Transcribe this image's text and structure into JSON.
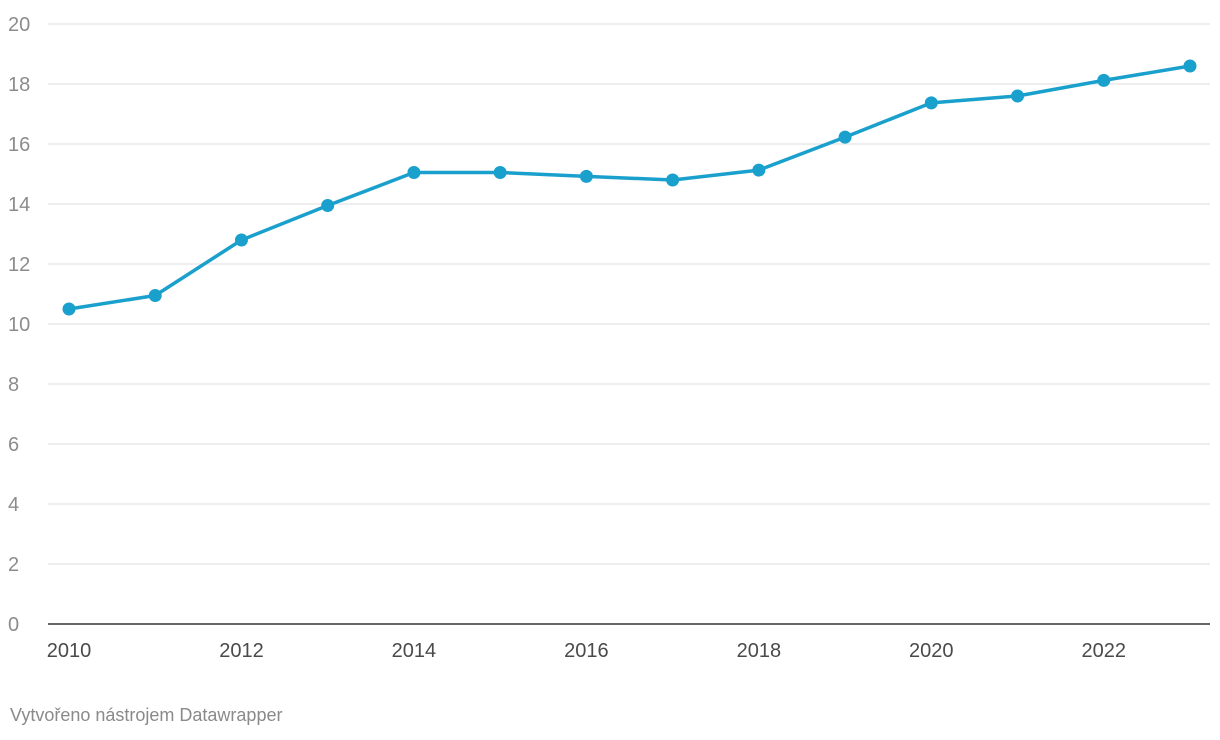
{
  "chart_data": {
    "type": "line",
    "x": [
      2010,
      2011,
      2012,
      2013,
      2014,
      2015,
      2016,
      2017,
      2018,
      2019,
      2020,
      2021,
      2022,
      2023
    ],
    "series": [
      {
        "values": [
          10.5,
          10.95,
          12.8,
          13.95,
          15.05,
          15.05,
          14.92,
          14.8,
          15.13,
          16.23,
          17.37,
          17.6,
          18.12,
          18.6
        ],
        "color": "#1aa0cc"
      }
    ],
    "ylim": [
      0,
      20
    ],
    "y_ticks": [
      0,
      2,
      4,
      6,
      8,
      10,
      12,
      14,
      16,
      18,
      20
    ],
    "x_ticks": [
      2010,
      2012,
      2014,
      2016,
      2018,
      2020,
      2022
    ],
    "title": "",
    "xlabel": "",
    "ylabel": "",
    "grid": true,
    "markers": true
  },
  "footer": {
    "credit": "Vytvořeno nástrojem Datawrapper"
  }
}
